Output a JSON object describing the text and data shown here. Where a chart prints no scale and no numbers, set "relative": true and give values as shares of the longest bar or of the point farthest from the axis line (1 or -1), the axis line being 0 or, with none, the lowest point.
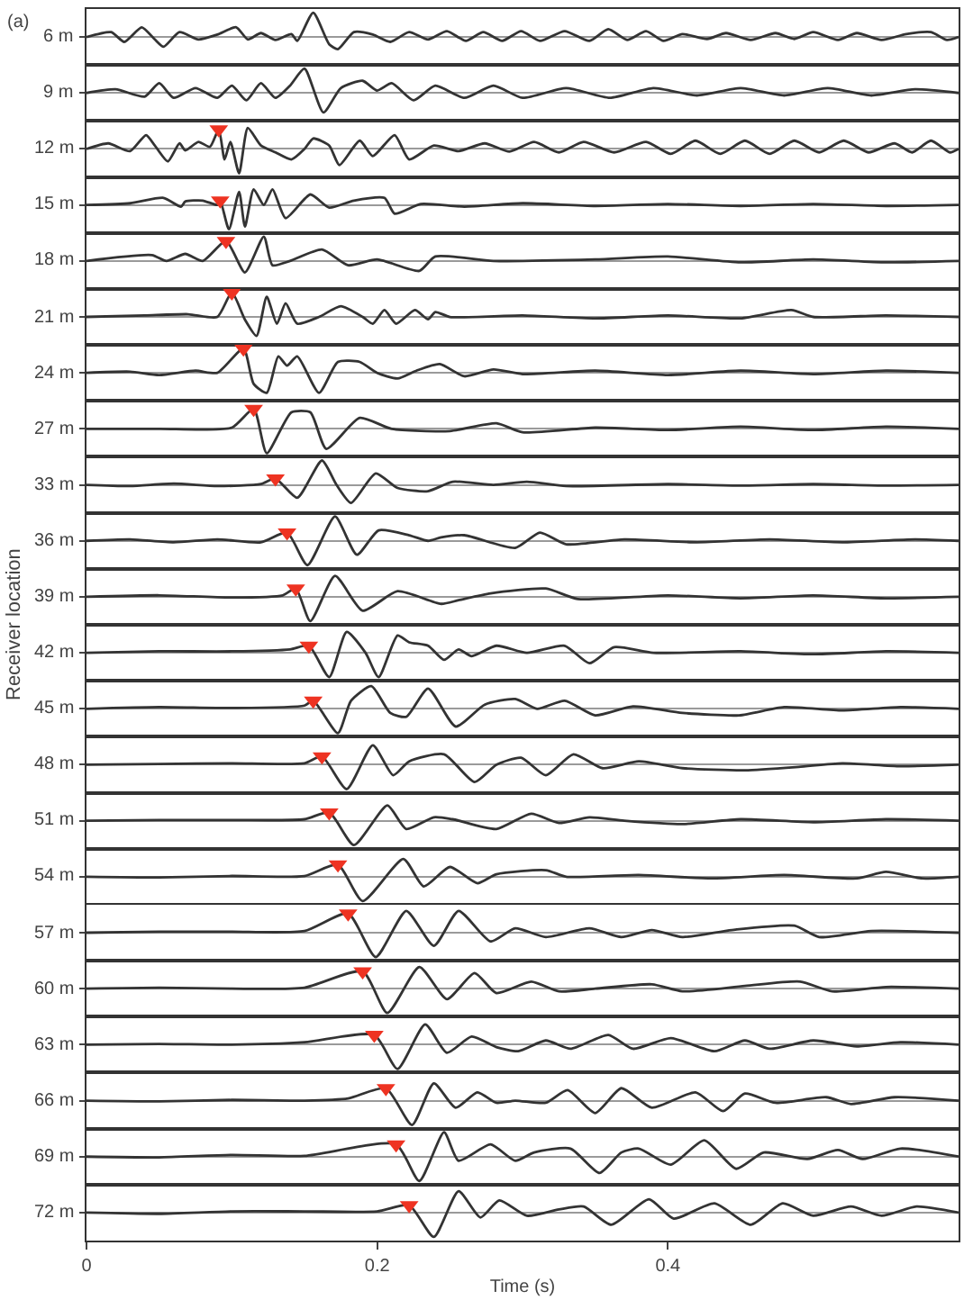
{
  "chart_data": [
    {
      "type": "line",
      "title": "(a)",
      "annotations": [
        "Receiver location"
      ],
      "ylabel": "6 m",
      "xlim": [
        0,
        0.6
      ],
      "relative": true,
      "tick_labels": false,
      "series": [
        {
          "color": "#333333",
          "x": [
            0,
            0.017,
            0.026,
            0.038,
            0.047,
            0.053,
            0.064,
            0.077,
            0.09,
            0.103,
            0.111,
            0.12,
            0.13,
            0.141,
            0.145,
            0.156,
            0.167,
            0.173,
            0.184,
            0.197,
            0.209,
            0.222,
            0.235,
            0.248,
            0.261,
            0.273,
            0.286,
            0.299,
            0.312,
            0.329,
            0.346,
            0.359,
            0.372,
            0.385,
            0.397,
            0.41,
            0.427,
            0.44,
            0.457,
            0.474,
            0.487,
            0.5,
            0.517,
            0.53,
            0.547,
            0.564,
            0.581,
            0.592,
            0.6
          ],
          "values": [
            0,
            0.2,
            -0.2,
            0.4,
            -0.1,
            -0.4,
            0.2,
            -0.1,
            0.1,
            0.4,
            -0.1,
            0.16,
            -0.12,
            0.12,
            -0.16,
            1.0,
            -0.3,
            -0.5,
            0.2,
            0.1,
            -0.2,
            0.2,
            -0.1,
            0.24,
            -0.16,
            0.2,
            -0.16,
            0.24,
            -0.16,
            0.24,
            -0.16,
            0.32,
            -0.12,
            0.24,
            -0.16,
            0.12,
            -0.08,
            0.16,
            -0.12,
            0.16,
            -0.08,
            0.2,
            -0.12,
            0.16,
            -0.12,
            0.12,
            0.2,
            -0.12,
            0
          ]
        }
      ]
    },
    {
      "type": "line",
      "ylabel": "9 m",
      "xlim": [
        0,
        0.6
      ],
      "relative": true,
      "tick_labels": false,
      "series": [
        {
          "color": "#333333",
          "x": [
            0,
            0.02,
            0.04,
            0.05,
            0.06,
            0.075,
            0.09,
            0.1,
            0.11,
            0.12,
            0.13,
            0.14,
            0.15,
            0.163,
            0.175,
            0.19,
            0.2,
            0.21,
            0.225,
            0.24,
            0.26,
            0.28,
            0.3,
            0.33,
            0.36,
            0.39,
            0.42,
            0.45,
            0.48,
            0.51,
            0.54,
            0.57,
            0.6
          ],
          "values": [
            0,
            0.15,
            -0.15,
            0.4,
            -0.2,
            0.2,
            -0.2,
            0.3,
            -0.3,
            0.4,
            -0.2,
            0.3,
            1.0,
            -0.8,
            0.2,
            0.5,
            0.1,
            0.4,
            -0.3,
            0.3,
            -0.2,
            0.3,
            -0.2,
            0.2,
            -0.2,
            0.2,
            -0.1,
            0.2,
            -0.1,
            0.2,
            -0.1,
            0.15,
            0
          ]
        }
      ]
    },
    {
      "type": "line",
      "ylabel": "12 m",
      "xlim": [
        0,
        0.6
      ],
      "relative": true,
      "tick_labels": false,
      "series": [
        {
          "color": "#333333",
          "x": [
            0,
            0.015,
            0.03,
            0.041,
            0.047,
            0.056,
            0.064,
            0.068,
            0.077,
            0.085,
            0.091,
            0.095,
            0.099,
            0.105,
            0.111,
            0.12,
            0.13,
            0.141,
            0.15,
            0.156,
            0.167,
            0.174,
            0.188,
            0.197,
            0.212,
            0.222,
            0.239,
            0.256,
            0.274,
            0.291,
            0.308,
            0.325,
            0.342,
            0.363,
            0.385,
            0.402,
            0.419,
            0.436,
            0.453,
            0.47,
            0.487,
            0.504,
            0.521,
            0.538,
            0.556,
            0.568,
            0.581,
            0.594,
            0.6
          ],
          "values": [
            0,
            0.23,
            -0.09,
            0.57,
            0.14,
            -0.51,
            0.23,
            -0.06,
            0.29,
            0.09,
            0.8,
            -0.43,
            0.29,
            -1.0,
            0.86,
            0.14,
            -0.14,
            -0.43,
            0,
            0.43,
            0.14,
            -0.66,
            0.34,
            -0.29,
            0.57,
            -0.43,
            0.14,
            -0.09,
            0.23,
            -0.11,
            0.29,
            -0.14,
            0.29,
            -0.14,
            0.29,
            -0.2,
            0.34,
            -0.2,
            0.34,
            -0.2,
            0.34,
            -0.14,
            0.34,
            -0.14,
            0.23,
            -0.14,
            0.34,
            -0.14,
            0
          ]
        },
        {
          "type": "scatter",
          "marker": "triangle",
          "color": "#ee3322",
          "x": [
            0.091
          ],
          "values": [
            0.8
          ]
        }
      ]
    },
    {
      "type": "line",
      "ylabel": "15 m",
      "xlim": [
        0,
        0.6
      ],
      "relative": true,
      "tick_labels": false,
      "series": [
        {
          "color": "#333333",
          "x": [
            0,
            0.03,
            0.053,
            0.065,
            0.068,
            0.08,
            0.09,
            0.092,
            0.098,
            0.105,
            0.109,
            0.115,
            0.122,
            0.128,
            0.137,
            0.154,
            0.167,
            0.184,
            0.205,
            0.212,
            0.23,
            0.26,
            0.3,
            0.35,
            0.4,
            0.45,
            0.5,
            0.55,
            0.6
          ],
          "values": [
            0,
            0.07,
            0.29,
            -0.07,
            0.14,
            0.18,
            0,
            0.18,
            -1.0,
            0.54,
            -0.89,
            0.64,
            0,
            0.64,
            -0.54,
            0.43,
            -0.11,
            0.18,
            0.29,
            -0.36,
            0.04,
            -0.07,
            0.07,
            -0.04,
            0.04,
            -0.04,
            0.04,
            -0.04,
            0
          ]
        },
        {
          "type": "scatter",
          "marker": "triangle",
          "color": "#ee3322",
          "x": [
            0.092
          ],
          "values": [
            0.18
          ]
        }
      ]
    },
    {
      "type": "line",
      "ylabel": "18 m",
      "xlim": [
        0,
        0.6
      ],
      "relative": true,
      "tick_labels": false,
      "series": [
        {
          "color": "#333333",
          "x": [
            0,
            0.045,
            0.055,
            0.068,
            0.08,
            0.096,
            0.109,
            0.122,
            0.128,
            0.14,
            0.162,
            0.18,
            0.2,
            0.229,
            0.24,
            0.28,
            0.35,
            0.4,
            0.45,
            0.5,
            0.55,
            0.6
          ],
          "values": [
            0,
            0.24,
            0,
            0.29,
            0,
            0.82,
            -0.47,
            1.0,
            -0.18,
            0,
            0.47,
            -0.18,
            0.06,
            -0.41,
            0.18,
            0,
            0.06,
            0.18,
            -0.06,
            0.06,
            -0.06,
            0
          ]
        },
        {
          "type": "scatter",
          "marker": "triangle",
          "color": "#ee3322",
          "x": [
            0.096
          ],
          "values": [
            0.82
          ]
        }
      ]
    },
    {
      "type": "line",
      "ylabel": "21 m",
      "xlim": [
        0,
        0.6
      ],
      "relative": true,
      "tick_labels": false,
      "series": [
        {
          "color": "#333333",
          "x": [
            0,
            0.04,
            0.07,
            0.09,
            0.1,
            0.109,
            0.117,
            0.124,
            0.131,
            0.137,
            0.145,
            0.16,
            0.175,
            0.19,
            0.197,
            0.205,
            0.213,
            0.226,
            0.235,
            0.24,
            0.25,
            0.3,
            0.35,
            0.4,
            0.45,
            0.485,
            0.5,
            0.55,
            0.6
          ],
          "values": [
            0,
            0.06,
            0.11,
            0,
            1.0,
            -0.11,
            -0.78,
            0.83,
            -0.28,
            0.56,
            -0.28,
            0,
            0.44,
            0,
            -0.28,
            0.28,
            -0.28,
            0.28,
            -0.1,
            0.2,
            0,
            0.06,
            -0.06,
            0.06,
            -0.06,
            0.28,
            0,
            0.06,
            0
          ]
        },
        {
          "type": "scatter",
          "marker": "triangle",
          "color": "#ee3322",
          "x": [
            0.1
          ],
          "values": [
            1.0
          ]
        }
      ]
    },
    {
      "type": "line",
      "ylabel": "24 m",
      "xlim": [
        0,
        0.6
      ],
      "relative": true,
      "tick_labels": false,
      "series": [
        {
          "color": "#333333",
          "x": [
            0,
            0.03,
            0.05,
            0.075,
            0.09,
            0.108,
            0.115,
            0.124,
            0.132,
            0.138,
            0.145,
            0.16,
            0.173,
            0.188,
            0.2,
            0.214,
            0.227,
            0.243,
            0.26,
            0.28,
            0.3,
            0.35,
            0.4,
            0.45,
            0.5,
            0.55,
            0.6
          ],
          "values": [
            0,
            0.05,
            -0.09,
            0.09,
            0,
            1.0,
            -0.45,
            -0.82,
            0.68,
            0.3,
            0.68,
            -0.82,
            0.45,
            0.45,
            0,
            -0.23,
            0.09,
            0.36,
            -0.14,
            0.14,
            -0.05,
            0.09,
            -0.09,
            0.09,
            -0.05,
            0.09,
            0
          ]
        },
        {
          "type": "scatter",
          "marker": "triangle",
          "color": "#ee3322",
          "x": [
            0.108
          ],
          "values": [
            1.0
          ]
        }
      ]
    },
    {
      "type": "line",
      "ylabel": "27 m",
      "xlim": [
        0,
        0.6
      ],
      "relative": true,
      "tick_labels": false,
      "series": [
        {
          "color": "#333333",
          "x": [
            0,
            0.05,
            0.1,
            0.115,
            0.124,
            0.141,
            0.154,
            0.165,
            0.188,
            0.21,
            0.25,
            0.282,
            0.3,
            0.35,
            0.4,
            0.45,
            0.5,
            0.55,
            0.6
          ],
          "values": [
            0,
            0,
            0.05,
            0.82,
            -1.0,
            0.68,
            0.68,
            -0.82,
            0.45,
            0,
            -0.09,
            0.23,
            -0.14,
            0.05,
            -0.05,
            0.09,
            -0.05,
            0.09,
            0
          ]
        },
        {
          "type": "scatter",
          "marker": "triangle",
          "color": "#ee3322",
          "x": [
            0.115
          ],
          "values": [
            0.82
          ]
        }
      ]
    },
    {
      "type": "line",
      "ylabel": "33 m",
      "xlim": [
        0,
        0.6
      ],
      "relative": true,
      "tick_labels": false,
      "series": [
        {
          "color": "#333333",
          "x": [
            0,
            0.03,
            0.06,
            0.09,
            0.12,
            0.13,
            0.145,
            0.162,
            0.172,
            0.182,
            0.199,
            0.214,
            0.235,
            0.252,
            0.28,
            0.303,
            0.33,
            0.4,
            0.45,
            0.5,
            0.55,
            0.6
          ],
          "values": [
            0,
            -0.05,
            0.05,
            -0.05,
            0.03,
            0.26,
            -0.53,
            1.0,
            0,
            -0.74,
            0.47,
            -0.13,
            -0.26,
            0.13,
            0,
            0.13,
            -0.05,
            0.03,
            -0.03,
            0.03,
            -0.03,
            0
          ]
        },
        {
          "type": "scatter",
          "marker": "triangle",
          "color": "#ee3322",
          "x": [
            0.13
          ],
          "values": [
            0.26
          ]
        }
      ]
    },
    {
      "type": "line",
      "ylabel": "36 m",
      "xlim": [
        0,
        0.6
      ],
      "relative": true,
      "tick_labels": false,
      "series": [
        {
          "color": "#333333",
          "x": [
            0,
            0.03,
            0.06,
            0.09,
            0.12,
            0.138,
            0.152,
            0.171,
            0.186,
            0.201,
            0.222,
            0.235,
            0.244,
            0.26,
            0.295,
            0.312,
            0.33,
            0.37,
            0.42,
            0.47,
            0.52,
            0.57,
            0.6
          ],
          "values": [
            0,
            0.06,
            -0.06,
            0.06,
            -0.06,
            0.34,
            -1.0,
            1.0,
            -0.57,
            0.43,
            0.23,
            0,
            0.14,
            0.23,
            -0.29,
            0.34,
            -0.14,
            0.06,
            -0.06,
            0.06,
            -0.06,
            0.06,
            0
          ]
        },
        {
          "type": "scatter",
          "marker": "triangle",
          "color": "#ee3322",
          "x": [
            0.138
          ],
          "values": [
            0.34
          ]
        }
      ]
    },
    {
      "type": "line",
      "ylabel": "39 m",
      "xlim": [
        0,
        0.6
      ],
      "relative": true,
      "tick_labels": false,
      "series": [
        {
          "color": "#333333",
          "x": [
            0,
            0.05,
            0.1,
            0.135,
            0.144,
            0.154,
            0.171,
            0.19,
            0.214,
            0.244,
            0.256,
            0.278,
            0.316,
            0.338,
            0.4,
            0.45,
            0.5,
            0.55,
            0.6
          ],
          "values": [
            0,
            0.06,
            -0.03,
            0.06,
            0.34,
            -1.0,
            0.86,
            -0.57,
            0.23,
            -0.29,
            -0.14,
            0.14,
            0.34,
            -0.09,
            0.06,
            -0.06,
            0.06,
            -0.06,
            0
          ]
        },
        {
          "type": "scatter",
          "marker": "triangle",
          "color": "#ee3322",
          "x": [
            0.144
          ],
          "values": [
            0.34
          ]
        }
      ]
    },
    {
      "type": "line",
      "ylabel": "42 m",
      "xlim": [
        0,
        0.6
      ],
      "relative": true,
      "tick_labels": false,
      "series": [
        {
          "color": "#333333",
          "x": [
            0,
            0.05,
            0.1,
            0.14,
            0.153,
            0.167,
            0.179,
            0.192,
            0.201,
            0.214,
            0.222,
            0.235,
            0.246,
            0.256,
            0.265,
            0.282,
            0.303,
            0.329,
            0.346,
            0.363,
            0.39,
            0.45,
            0.5,
            0.55,
            0.6
          ],
          "values": [
            0,
            0.06,
            0.06,
            0.14,
            0.29,
            -1.0,
            0.86,
            0,
            -1.0,
            0.71,
            0.43,
            0.29,
            -0.29,
            0.14,
            -0.14,
            0.29,
            0,
            0.29,
            -0.43,
            0.23,
            0,
            0.06,
            -0.06,
            0.06,
            0
          ]
        },
        {
          "type": "scatter",
          "marker": "triangle",
          "color": "#ee3322",
          "x": [
            0.153
          ],
          "values": [
            0.29
          ]
        }
      ]
    },
    {
      "type": "line",
      "ylabel": "45 m",
      "xlim": [
        0,
        0.6
      ],
      "relative": true,
      "tick_labels": false,
      "series": [
        {
          "color": "#333333",
          "x": [
            0,
            0.05,
            0.1,
            0.15,
            0.156,
            0.173,
            0.182,
            0.196,
            0.209,
            0.22,
            0.235,
            0.254,
            0.274,
            0.295,
            0.31,
            0.329,
            0.35,
            0.376,
            0.41,
            0.449,
            0.48,
            0.52,
            0.56,
            0.6
          ],
          "values": [
            0,
            0.07,
            0.03,
            0.13,
            0.33,
            -1.0,
            0.33,
            0.93,
            -0.17,
            -0.33,
            0.83,
            -0.73,
            0.17,
            0.4,
            0,
            0.33,
            -0.27,
            0.1,
            -0.17,
            -0.27,
            0.07,
            -0.07,
            0.07,
            0
          ]
        },
        {
          "type": "scatter",
          "marker": "triangle",
          "color": "#ee3322",
          "x": [
            0.156
          ],
          "values": [
            0.33
          ]
        }
      ]
    },
    {
      "type": "line",
      "ylabel": "48 m",
      "xlim": [
        0,
        0.6
      ],
      "relative": true,
      "tick_labels": false,
      "series": [
        {
          "color": "#333333",
          "x": [
            0,
            0.05,
            0.1,
            0.15,
            0.162,
            0.179,
            0.197,
            0.211,
            0.222,
            0.246,
            0.267,
            0.282,
            0.299,
            0.316,
            0.335,
            0.355,
            0.38,
            0.41,
            0.453,
            0.49,
            0.52,
            0.56,
            0.6
          ],
          "values": [
            0,
            0.03,
            0.06,
            0.06,
            0.34,
            -1.0,
            0.8,
            -0.43,
            0.14,
            0.43,
            -0.71,
            0,
            0.29,
            -0.43,
            0.43,
            -0.14,
            0.14,
            -0.14,
            -0.23,
            -0.09,
            0.06,
            -0.06,
            0
          ]
        },
        {
          "type": "scatter",
          "marker": "triangle",
          "color": "#ee3322",
          "x": [
            0.162
          ],
          "values": [
            0.34
          ]
        }
      ]
    },
    {
      "type": "line",
      "ylabel": "51 m",
      "xlim": [
        0,
        0.6
      ],
      "relative": true,
      "tick_labels": false,
      "series": [
        {
          "color": "#333333",
          "x": [
            0,
            0.05,
            0.1,
            0.15,
            0.167,
            0.184,
            0.207,
            0.22,
            0.239,
            0.252,
            0.282,
            0.306,
            0.325,
            0.346,
            0.37,
            0.41,
            0.45,
            0.5,
            0.55,
            0.6
          ],
          "values": [
            0,
            0.03,
            0.03,
            0.06,
            0.34,
            -1.0,
            0.63,
            -0.34,
            0.14,
            0.06,
            -0.34,
            0.29,
            -0.09,
            0.14,
            0,
            -0.14,
            0.06,
            -0.06,
            0.06,
            0
          ]
        },
        {
          "type": "scatter",
          "marker": "triangle",
          "color": "#ee3322",
          "x": [
            0.167
          ],
          "values": [
            0.34
          ]
        }
      ]
    },
    {
      "type": "line",
      "ylabel": "54 m",
      "xlim": [
        0,
        0.6
      ],
      "relative": true,
      "tick_labels": false,
      "series": [
        {
          "color": "#333333",
          "x": [
            0,
            0.05,
            0.1,
            0.15,
            0.173,
            0.19,
            0.218,
            0.232,
            0.25,
            0.269,
            0.282,
            0.316,
            0.33,
            0.38,
            0.43,
            0.48,
            0.53,
            0.55,
            0.575,
            0.6
          ],
          "values": [
            0,
            -0.03,
            0.03,
            0.03,
            0.5,
            -1.0,
            0.73,
            -0.4,
            0.4,
            -0.27,
            0.1,
            0.27,
            0,
            0.07,
            -0.07,
            0.07,
            -0.07,
            0.2,
            -0.07,
            0
          ]
        },
        {
          "type": "scatter",
          "marker": "triangle",
          "color": "#ee3322",
          "x": [
            0.173
          ],
          "values": [
            0.5
          ]
        }
      ]
    },
    {
      "type": "line",
      "ylabel": "57 m",
      "xlim": [
        0,
        0.6
      ],
      "relative": true,
      "tick_labels": false,
      "series": [
        {
          "color": "#333333",
          "x": [
            0,
            0.05,
            0.1,
            0.15,
            0.18,
            0.199,
            0.22,
            0.239,
            0.256,
            0.278,
            0.295,
            0.316,
            0.346,
            0.368,
            0.389,
            0.41,
            0.444,
            0.487,
            0.504,
            0.54,
            0.6
          ],
          "values": [
            0,
            0.04,
            0.04,
            0.07,
            0.79,
            -1.0,
            0.89,
            -0.54,
            0.89,
            -0.36,
            0.18,
            -0.18,
            0.18,
            -0.18,
            0.11,
            -0.18,
            0.11,
            0.29,
            -0.18,
            0.07,
            0
          ]
        },
        {
          "type": "scatter",
          "marker": "triangle",
          "color": "#ee3322",
          "x": [
            0.18
          ],
          "values": [
            0.79
          ]
        }
      ]
    },
    {
      "type": "line",
      "ylabel": "60 m",
      "xlim": [
        0,
        0.6
      ],
      "relative": true,
      "tick_labels": false,
      "series": [
        {
          "color": "#333333",
          "x": [
            0,
            0.05,
            0.1,
            0.15,
            0.19,
            0.207,
            0.229,
            0.248,
            0.267,
            0.282,
            0.306,
            0.325,
            0.35,
            0.389,
            0.41,
            0.453,
            0.491,
            0.513,
            0.55,
            0.6
          ],
          "values": [
            0,
            0.04,
            0,
            0.04,
            0.71,
            -1.0,
            0.89,
            -0.43,
            0.64,
            -0.18,
            0.29,
            -0.11,
            0,
            0.18,
            -0.11,
            0.11,
            0.29,
            -0.11,
            0.07,
            0
          ]
        },
        {
          "type": "scatter",
          "marker": "triangle",
          "color": "#ee3322",
          "x": [
            0.19
          ],
          "values": [
            0.71
          ]
        }
      ]
    },
    {
      "type": "line",
      "ylabel": "63 m",
      "xlim": [
        0,
        0.6
      ],
      "relative": true,
      "tick_labels": false,
      "series": [
        {
          "color": "#333333",
          "x": [
            0,
            0.05,
            0.1,
            0.15,
            0.198,
            0.214,
            0.233,
            0.248,
            0.265,
            0.282,
            0.297,
            0.316,
            0.333,
            0.359,
            0.376,
            0.402,
            0.432,
            0.453,
            0.47,
            0.5,
            0.53,
            0.56,
            0.6
          ],
          "values": [
            0,
            0.03,
            0,
            0.1,
            0.4,
            -1.0,
            0.83,
            -0.33,
            0.33,
            -0.1,
            -0.27,
            0.17,
            -0.17,
            0.4,
            -0.17,
            0.27,
            -0.27,
            0.17,
            -0.17,
            0.17,
            -0.07,
            0.1,
            0
          ]
        },
        {
          "type": "scatter",
          "marker": "triangle",
          "color": "#ee3322",
          "x": [
            0.198
          ],
          "values": [
            0.4
          ]
        }
      ]
    },
    {
      "type": "line",
      "ylabel": "66 m",
      "xlim": [
        0,
        0.6
      ],
      "relative": true,
      "tick_labels": false,
      "series": [
        {
          "color": "#333333",
          "x": [
            0,
            0.05,
            0.1,
            0.15,
            0.18,
            0.206,
            0.224,
            0.239,
            0.254,
            0.269,
            0.282,
            0.295,
            0.316,
            0.331,
            0.35,
            0.368,
            0.389,
            0.419,
            0.438,
            0.453,
            0.474,
            0.509,
            0.526,
            0.556,
            0.6
          ],
          "values": [
            0,
            -0.03,
            0.03,
            0,
            0.09,
            0.51,
            -1.0,
            0.71,
            -0.29,
            0.34,
            -0.09,
            0,
            -0.09,
            0.43,
            -0.51,
            0.51,
            -0.29,
            0.34,
            -0.43,
            0.29,
            -0.09,
            0.14,
            -0.14,
            0.14,
            0
          ]
        },
        {
          "type": "scatter",
          "marker": "triangle",
          "color": "#ee3322",
          "x": [
            0.206
          ],
          "values": [
            0.51
          ]
        }
      ]
    },
    {
      "type": "line",
      "ylabel": "69 m",
      "xlim": [
        0,
        0.6
      ],
      "relative": true,
      "tick_labels": false,
      "series": [
        {
          "color": "#333333",
          "x": [
            0,
            0.05,
            0.1,
            0.15,
            0.213,
            0.229,
            0.246,
            0.256,
            0.278,
            0.295,
            0.308,
            0.333,
            0.353,
            0.368,
            0.38,
            0.402,
            0.425,
            0.447,
            0.466,
            0.496,
            0.517,
            0.534,
            0.56,
            0.6
          ],
          "values": [
            0,
            -0.03,
            0.07,
            0.03,
            0.5,
            -1.0,
            1.0,
            -0.17,
            0.5,
            -0.17,
            0.17,
            0.33,
            -0.67,
            0.17,
            0.33,
            -0.33,
            0.67,
            -0.5,
            0.17,
            -0.1,
            0.27,
            -0.1,
            0.33,
            0
          ]
        },
        {
          "type": "scatter",
          "marker": "triangle",
          "color": "#ee3322",
          "x": [
            0.213
          ],
          "values": [
            0.5
          ]
        }
      ]
    },
    {
      "type": "line",
      "ylabel": "72 m",
      "xlabel": "Time (s)",
      "xlim": [
        0,
        0.6
      ],
      "xticks": [
        0,
        0.2,
        0.4
      ],
      "relative": true,
      "tick_labels": "x",
      "series": [
        {
          "color": "#333333",
          "x": [
            0,
            0.05,
            0.1,
            0.15,
            0.2,
            0.222,
            0.239,
            0.256,
            0.271,
            0.284,
            0.303,
            0.325,
            0.342,
            0.361,
            0.387,
            0.404,
            0.432,
            0.457,
            0.479,
            0.5,
            0.526,
            0.547,
            0.571,
            0.6
          ],
          "values": [
            0,
            -0.05,
            0.05,
            0.05,
            0.05,
            0.3,
            -1.0,
            0.88,
            -0.2,
            0.5,
            -0.13,
            0.13,
            0.25,
            -0.5,
            0.55,
            -0.25,
            0.38,
            -0.5,
            0.38,
            -0.13,
            0.25,
            -0.13,
            0.25,
            0
          ]
        },
        {
          "type": "scatter",
          "marker": "triangle",
          "color": "#ee3322",
          "x": [
            0.222
          ],
          "values": [
            0.3
          ]
        }
      ]
    }
  ]
}
